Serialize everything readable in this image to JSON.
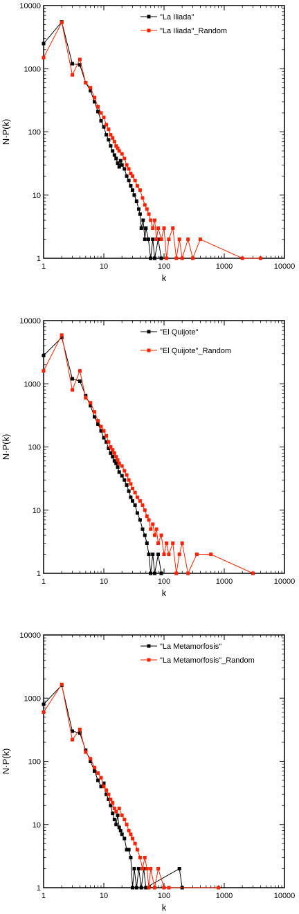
{
  "chart_data": [
    {
      "type": "line",
      "xscale": "log",
      "yscale": "log",
      "xlim": [
        1,
        10000
      ],
      "ylim": [
        1,
        10000
      ],
      "xlabel": "k",
      "ylabel": "N·P(k)",
      "x_tick_labels": [
        "1",
        "10",
        "100",
        "1000",
        "10000"
      ],
      "y_tick_labels": [
        "1",
        "10",
        "100",
        "1000",
        "10000"
      ],
      "legend_position": "top-right",
      "series": [
        {
          "name": "\"La Iliada\"",
          "color": "#000000",
          "points": [
            [
              1,
              2500
            ],
            [
              2,
              5500
            ],
            [
              3,
              1200
            ],
            [
              4,
              1150
            ],
            [
              5,
              600
            ],
            [
              6,
              450
            ],
            [
              7,
              300
            ],
            [
              8,
              210
            ],
            [
              9,
              150
            ],
            [
              10,
              120
            ],
            [
              11,
              90
            ],
            [
              12,
              75
            ],
            [
              13,
              60
            ],
            [
              14,
              50
            ],
            [
              15,
              43
            ],
            [
              16,
              38
            ],
            [
              17,
              32
            ],
            [
              18,
              28
            ],
            [
              19,
              35
            ],
            [
              20,
              30
            ],
            [
              22,
              26
            ],
            [
              24,
              20
            ],
            [
              26,
              17
            ],
            [
              28,
              14
            ],
            [
              30,
              12
            ],
            [
              32,
              10
            ],
            [
              35,
              8
            ],
            [
              38,
              6
            ],
            [
              40,
              5
            ],
            [
              42,
              3
            ],
            [
              45,
              4
            ],
            [
              48,
              2
            ],
            [
              50,
              3
            ],
            [
              55,
              2
            ],
            [
              60,
              1
            ],
            [
              65,
              2
            ],
            [
              70,
              1
            ],
            [
              80,
              2
            ],
            [
              90,
              1
            ]
          ]
        },
        {
          "name": "\"La Iliada\"_Random",
          "color": "#ff2200",
          "points": [
            [
              1,
              1500
            ],
            [
              2,
              5400
            ],
            [
              3,
              800
            ],
            [
              4,
              1400
            ],
            [
              5,
              600
            ],
            [
              6,
              500
            ],
            [
              7,
              350
            ],
            [
              8,
              250
            ],
            [
              9,
              200
            ],
            [
              10,
              170
            ],
            [
              11,
              130
            ],
            [
              12,
              110
            ],
            [
              13,
              90
            ],
            [
              14,
              80
            ],
            [
              15,
              70
            ],
            [
              16,
              60
            ],
            [
              17,
              55
            ],
            [
              18,
              50
            ],
            [
              20,
              45
            ],
            [
              22,
              38
            ],
            [
              24,
              30
            ],
            [
              26,
              26
            ],
            [
              28,
              22
            ],
            [
              30,
              20
            ],
            [
              33,
              17
            ],
            [
              36,
              14
            ],
            [
              40,
              12
            ],
            [
              44,
              9
            ],
            [
              48,
              7
            ],
            [
              52,
              6
            ],
            [
              56,
              5
            ],
            [
              60,
              4
            ],
            [
              65,
              3
            ],
            [
              70,
              4
            ],
            [
              75,
              2
            ],
            [
              80,
              3
            ],
            [
              90,
              2
            ],
            [
              100,
              3
            ],
            [
              110,
              1
            ],
            [
              120,
              2
            ],
            [
              140,
              3
            ],
            [
              160,
              1
            ],
            [
              180,
              2
            ],
            [
              200,
              1
            ],
            [
              250,
              2
            ],
            [
              300,
              1
            ],
            [
              400,
              2
            ],
            [
              2000,
              1
            ],
            [
              4000,
              1
            ]
          ]
        }
      ]
    },
    {
      "type": "line",
      "xscale": "log",
      "yscale": "log",
      "xlim": [
        1,
        10000
      ],
      "ylim": [
        1,
        10000
      ],
      "xlabel": "k",
      "ylabel": "N·P(k)",
      "x_tick_labels": [
        "1",
        "10",
        "100",
        "1000",
        "10000"
      ],
      "y_tick_labels": [
        "1",
        "10",
        "100",
        "1000",
        "10000"
      ],
      "legend_position": "top-right",
      "series": [
        {
          "name": "\"El Quijote\"",
          "color": "#000000",
          "points": [
            [
              1,
              2800
            ],
            [
              2,
              5400
            ],
            [
              3,
              1200
            ],
            [
              4,
              1100
            ],
            [
              5,
              650
            ],
            [
              6,
              450
            ],
            [
              7,
              300
            ],
            [
              8,
              230
            ],
            [
              9,
              180
            ],
            [
              10,
              140
            ],
            [
              11,
              120
            ],
            [
              12,
              95
            ],
            [
              13,
              80
            ],
            [
              14,
              70
            ],
            [
              15,
              60
            ],
            [
              16,
              55
            ],
            [
              17,
              48
            ],
            [
              18,
              40
            ],
            [
              20,
              35
            ],
            [
              22,
              30
            ],
            [
              24,
              25
            ],
            [
              26,
              20
            ],
            [
              28,
              16
            ],
            [
              30,
              14
            ],
            [
              33,
              12
            ],
            [
              36,
              9
            ],
            [
              40,
              7
            ],
            [
              44,
              5
            ],
            [
              48,
              4
            ],
            [
              52,
              3
            ],
            [
              56,
              2
            ],
            [
              60,
              1
            ],
            [
              65,
              2
            ],
            [
              70,
              1
            ],
            [
              80,
              2
            ],
            [
              90,
              1
            ]
          ]
        },
        {
          "name": "\"El Quijote\"_Random",
          "color": "#ff2200",
          "points": [
            [
              1,
              1600
            ],
            [
              2,
              5900
            ],
            [
              3,
              800
            ],
            [
              4,
              1600
            ],
            [
              5,
              600
            ],
            [
              6,
              500
            ],
            [
              7,
              360
            ],
            [
              8,
              260
            ],
            [
              9,
              210
            ],
            [
              10,
              180
            ],
            [
              11,
              150
            ],
            [
              12,
              120
            ],
            [
              13,
              100
            ],
            [
              14,
              90
            ],
            [
              15,
              80
            ],
            [
              16,
              70
            ],
            [
              17,
              62
            ],
            [
              18,
              55
            ],
            [
              20,
              50
            ],
            [
              22,
              42
            ],
            [
              24,
              36
            ],
            [
              26,
              30
            ],
            [
              28,
              26
            ],
            [
              30,
              22
            ],
            [
              33,
              19
            ],
            [
              36,
              16
            ],
            [
              40,
              14
            ],
            [
              44,
              12
            ],
            [
              48,
              10
            ],
            [
              52,
              8
            ],
            [
              56,
              7
            ],
            [
              60,
              5
            ],
            [
              65,
              6
            ],
            [
              70,
              4
            ],
            [
              75,
              5
            ],
            [
              80,
              3
            ],
            [
              90,
              4
            ],
            [
              100,
              2
            ],
            [
              110,
              3
            ],
            [
              120,
              2
            ],
            [
              140,
              3
            ],
            [
              160,
              1
            ],
            [
              180,
              2
            ],
            [
              200,
              3
            ],
            [
              250,
              1
            ],
            [
              350,
              2
            ],
            [
              600,
              2
            ],
            [
              3000,
              1
            ]
          ]
        }
      ]
    },
    {
      "type": "line",
      "xscale": "log",
      "yscale": "log",
      "xlim": [
        1,
        10000
      ],
      "ylim": [
        1,
        10000
      ],
      "xlabel": "k",
      "ylabel": "N·P(k)",
      "x_tick_labels": [
        "1",
        "10",
        "100",
        "1000",
        "10000"
      ],
      "y_tick_labels": [
        "1",
        "10",
        "100",
        "1000",
        "10000"
      ],
      "legend_position": "top-right",
      "series": [
        {
          "name": "\"La Metamorfosis\"",
          "color": "#000000",
          "points": [
            [
              1,
              800
            ],
            [
              2,
              1600
            ],
            [
              3,
              300
            ],
            [
              4,
              280
            ],
            [
              5,
              150
            ],
            [
              6,
              100
            ],
            [
              7,
              70
            ],
            [
              8,
              50
            ],
            [
              9,
              40
            ],
            [
              10,
              45
            ],
            [
              11,
              30
            ],
            [
              12,
              25
            ],
            [
              13,
              20
            ],
            [
              14,
              15
            ],
            [
              15,
              12
            ],
            [
              16,
              10
            ],
            [
              17,
              14
            ],
            [
              18,
              9
            ],
            [
              19,
              8
            ],
            [
              20,
              7
            ],
            [
              22,
              6
            ],
            [
              24,
              4
            ],
            [
              26,
              4
            ],
            [
              28,
              3
            ],
            [
              30,
              1
            ],
            [
              32,
              2
            ],
            [
              35,
              1
            ],
            [
              38,
              2
            ],
            [
              42,
              1
            ],
            [
              46,
              2
            ],
            [
              50,
              1
            ],
            [
              180,
              2
            ],
            [
              200,
              1
            ]
          ]
        },
        {
          "name": "\"La Metamorfosis\"_Random",
          "color": "#ff2200",
          "points": [
            [
              1,
              600
            ],
            [
              2,
              1650
            ],
            [
              3,
              220
            ],
            [
              4,
              320
            ],
            [
              5,
              140
            ],
            [
              6,
              110
            ],
            [
              7,
              80
            ],
            [
              8,
              65
            ],
            [
              9,
              55
            ],
            [
              10,
              40
            ],
            [
              11,
              35
            ],
            [
              12,
              30
            ],
            [
              13,
              25
            ],
            [
              14,
              22
            ],
            [
              15,
              18
            ],
            [
              16,
              16
            ],
            [
              18,
              18
            ],
            [
              20,
              14
            ],
            [
              22,
              12
            ],
            [
              24,
              10
            ],
            [
              26,
              8
            ],
            [
              28,
              7
            ],
            [
              30,
              6
            ],
            [
              33,
              5
            ],
            [
              36,
              4
            ],
            [
              40,
              3
            ],
            [
              44,
              2
            ],
            [
              48,
              3
            ],
            [
              52,
              2
            ],
            [
              56,
              1
            ],
            [
              60,
              2
            ],
            [
              70,
              1
            ],
            [
              80,
              2
            ],
            [
              100,
              1
            ],
            [
              120,
              1
            ],
            [
              800,
              1
            ]
          ]
        }
      ]
    }
  ]
}
